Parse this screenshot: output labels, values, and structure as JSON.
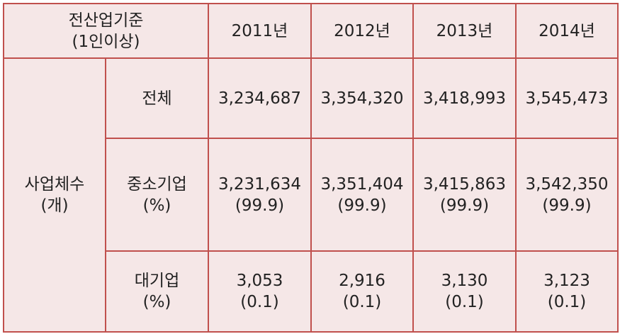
{
  "table": {
    "corner": [
      "전산업기준",
      "(1인이상)"
    ],
    "years": [
      "2011년",
      "2012년",
      "2013년",
      "2014년"
    ],
    "group": [
      "사업체수",
      "(개)"
    ],
    "rows": [
      {
        "label": [
          "전체"
        ],
        "cells": [
          [
            "3,234,687"
          ],
          [
            "3,354,320"
          ],
          [
            "3,418,993"
          ],
          [
            "3,545,473"
          ]
        ]
      },
      {
        "label": [
          "중소기업",
          "(%)"
        ],
        "cells": [
          [
            "3,231,634",
            "(99.9)"
          ],
          [
            "3,351,404",
            "(99.9)"
          ],
          [
            "3,415,863",
            "(99.9)"
          ],
          [
            "3,542,350",
            "(99.9)"
          ]
        ]
      },
      {
        "label": [
          "대기업",
          "(%)"
        ],
        "cells": [
          [
            "3,053",
            "(0.1)"
          ],
          [
            "2,916",
            "(0.1)"
          ],
          [
            "3,130",
            "(0.1)"
          ],
          [
            "3,123",
            "(0.1)"
          ]
        ]
      }
    ]
  }
}
